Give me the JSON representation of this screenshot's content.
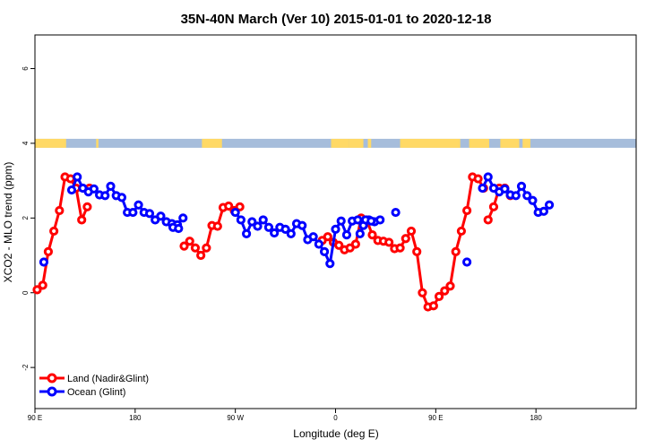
{
  "chart_data": {
    "type": "line",
    "title": "35N-40N March (Ver 10)   2015-01-01 to 2020-12-18",
    "xlabel": "Longitude (deg E)",
    "ylabel": "XCO2 - MLO trend (ppm)",
    "xlim": [
      90,
      630
    ],
    "ylim": [
      -3.1,
      6.9
    ],
    "x_ticks": [
      {
        "value": 90,
        "label": "90 E"
      },
      {
        "value": 180,
        "label": "180"
      },
      {
        "value": 270,
        "label": "90 W"
      },
      {
        "value": 360,
        "label": "0"
      },
      {
        "value": 450,
        "label": "90 E"
      },
      {
        "value": 540,
        "label": "180"
      }
    ],
    "y_ticks": [
      {
        "value": -2,
        "label": "-2"
      },
      {
        "value": 0,
        "label": "0"
      },
      {
        "value": 2,
        "label": "2"
      },
      {
        "value": 4,
        "label": "4"
      },
      {
        "value": 6,
        "label": "6"
      }
    ],
    "grid": false,
    "legend_position": "bottom-left",
    "surface_band": {
      "y": 4.0,
      "land_color": "#ffd966",
      "ocean_color": "#a6bddb",
      "land_ranges": [
        [
          90,
          118
        ],
        [
          145,
          147
        ],
        [
          240,
          258
        ],
        [
          356,
          372
        ],
        [
          372,
          385
        ],
        [
          389,
          392
        ],
        [
          418,
          472
        ],
        [
          480,
          498
        ],
        [
          508,
          525
        ],
        [
          528,
          535
        ]
      ]
    },
    "series": [
      {
        "name": "Land (Nadir&Glint)",
        "color": "#ff0000",
        "segments": [
          {
            "x": [
              92,
              97,
              102,
              107,
              112,
              117,
              122,
              127,
              132,
              137
            ],
            "y": [
              0.08,
              0.2,
              1.1,
              1.65,
              2.2,
              3.1,
              3.05,
              2.8,
              1.95,
              2.3
            ]
          },
          {
            "x": [
              139
            ],
            "y": [
              2.8
            ]
          },
          {
            "x": [
              224,
              229,
              234,
              239,
              244,
              249,
              254,
              259,
              264,
              269,
              274
            ],
            "y": [
              1.25,
              1.38,
              1.2,
              1.0,
              1.2,
              1.8,
              1.78,
              2.28,
              2.32,
              2.2,
              2.3
            ]
          },
          {
            "x": [
              348,
              353,
              358,
              363,
              368,
              373,
              378,
              383,
              388,
              393,
              398,
              403,
              408,
              413,
              418,
              423,
              428,
              433,
              438,
              443,
              448,
              453,
              458,
              463,
              468,
              473,
              478,
              483,
              488,
              493
            ],
            "y": [
              1.4,
              1.5,
              1.35,
              1.27,
              1.15,
              1.2,
              1.3,
              2.0,
              1.95,
              1.55,
              1.4,
              1.38,
              1.35,
              1.18,
              1.2,
              1.45,
              1.65,
              1.1,
              0.0,
              -0.38,
              -0.35,
              -0.1,
              0.05,
              0.18,
              1.1,
              1.65,
              2.2,
              3.1,
              3.05,
              2.8
            ]
          },
          {
            "x": [
              497,
              502,
              507,
              512,
              517
            ],
            "y": [
              1.95,
              2.3,
              2.8,
              2.8,
              2.6
            ]
          }
        ]
      },
      {
        "name": "Ocean (Glint)",
        "color": "#0000ff",
        "segments": [
          {
            "x": [
              98
            ],
            "y": [
              0.82
            ]
          },
          {
            "x": [
              123,
              128,
              133,
              138,
              143,
              148,
              153,
              158,
              163,
              168,
              173,
              178,
              183,
              188,
              193,
              198,
              203,
              208,
              213,
              218,
              223
            ],
            "y": [
              2.75,
              3.1,
              2.8,
              2.7,
              2.78,
              2.62,
              2.6,
              2.85,
              2.6,
              2.55,
              2.15,
              2.15,
              2.35,
              2.15,
              2.12,
              1.95,
              2.05,
              1.9,
              1.85,
              1.82,
              2.0
            ]
          },
          {
            "x": [
              214,
              219
            ],
            "y": [
              1.75,
              1.72
            ]
          },
          {
            "x": [
              270,
              275,
              280,
              285,
              290,
              295,
              300,
              305,
              310,
              315,
              320,
              325,
              330,
              335,
              340,
              345,
              350,
              355,
              360,
              365,
              370,
              375,
              380,
              385,
              390,
              395,
              400
            ],
            "y": [
              2.15,
              1.95,
              1.58,
              1.9,
              1.78,
              1.95,
              1.75,
              1.6,
              1.75,
              1.7,
              1.58,
              1.85,
              1.8,
              1.42,
              1.5,
              1.3,
              1.1,
              0.78,
              1.7,
              1.92,
              1.55,
              1.92,
              1.95,
              1.8,
              1.95,
              1.9,
              1.95
            ]
          },
          {
            "x": [
              382,
              387,
              392
            ],
            "y": [
              1.58,
              1.95,
              1.92
            ]
          },
          {
            "x": [
              414
            ],
            "y": [
              2.15
            ]
          },
          {
            "x": [
              478
            ],
            "y": [
              0.82
            ]
          },
          {
            "x": [
              492,
              497,
              502,
              507,
              512,
              517,
              522,
              527,
              532,
              537,
              542,
              547,
              552
            ],
            "y": [
              2.8,
              3.1,
              2.8,
              2.7,
              2.78,
              2.62,
              2.6,
              2.85,
              2.6,
              2.47,
              2.15,
              2.18,
              2.35
            ]
          }
        ]
      }
    ]
  }
}
